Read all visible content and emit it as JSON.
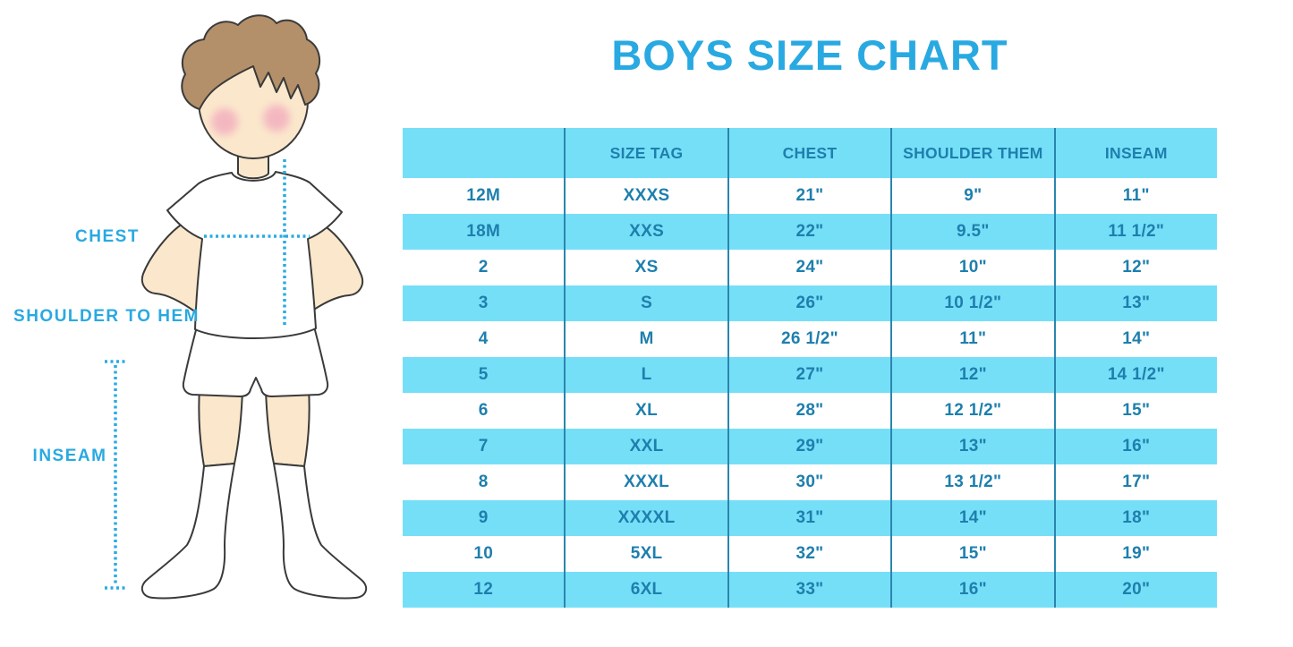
{
  "page": {
    "title": "BOYS SIZE CHART"
  },
  "figure": {
    "chest_label": "CHEST",
    "shoulder_label": "SHOULDER TO HEM",
    "inseam_label": "INSEAM"
  },
  "chart_data": {
    "type": "table",
    "title": "BOYS SIZE CHART",
    "columns": [
      "",
      "SIZE TAG",
      "CHEST",
      "SHOULDER THEM",
      "INSEAM"
    ],
    "rows": [
      [
        "12M",
        "XXXS",
        "21\"",
        "9\"",
        "11\""
      ],
      [
        "18M",
        "XXS",
        "22\"",
        "9.5\"",
        "11 1/2\""
      ],
      [
        "2",
        "XS",
        "24\"",
        "10\"",
        "12\""
      ],
      [
        "3",
        "S",
        "26\"",
        "10 1/2\"",
        "13\""
      ],
      [
        "4",
        "M",
        "26 1/2\"",
        "11\"",
        "14\""
      ],
      [
        "5",
        "L",
        "27\"",
        "12\"",
        "14 1/2\""
      ],
      [
        "6",
        "XL",
        "28\"",
        "12 1/2\"",
        "15\""
      ],
      [
        "7",
        "XXL",
        "29\"",
        "13\"",
        "16\""
      ],
      [
        "8",
        "XXXL",
        "30\"",
        "13 1/2\"",
        "17\""
      ],
      [
        "9",
        "XXXXL",
        "31\"",
        "14\"",
        "18\""
      ],
      [
        "10",
        "5XL",
        "32\"",
        "15\"",
        "19\""
      ],
      [
        "12",
        "6XL",
        "33\"",
        "16\"",
        "20\""
      ]
    ],
    "row_stripe_pattern": "white/blue alternating, header blue",
    "legend_position": "none",
    "grid": "vertical column dividers only"
  },
  "colors": {
    "accent_blue": "#29A9E1",
    "stripe_blue": "#76DFF8",
    "table_text_blue": "#1E7FAD",
    "divider_blue": "#2A85AD",
    "dotted_line_blue": "#29ABE2",
    "skin": "#FBE8CC",
    "hair_brown": "#B3906A",
    "blush_pink": "#F2ACBE",
    "outline": "#3A3A3A",
    "background": "#FFFFFF"
  }
}
